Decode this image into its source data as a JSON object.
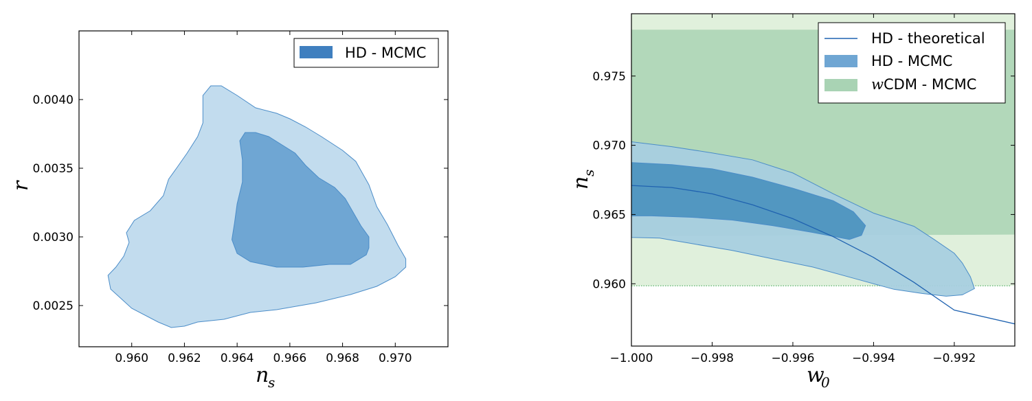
{
  "chart_data": [
    {
      "type": "contour",
      "title": "",
      "xlabel": "n",
      "xlabel_sub": "s",
      "ylabel": "r",
      "xlim": [
        0.958,
        0.972
      ],
      "ylim": [
        0.0022,
        0.0045
      ],
      "x_ticks": [
        {
          "value": 0.96,
          "label": "0.960"
        },
        {
          "value": 0.962,
          "label": "0.962"
        },
        {
          "value": 0.964,
          "label": "0.964"
        },
        {
          "value": 0.966,
          "label": "0.966"
        },
        {
          "value": 0.968,
          "label": "0.968"
        },
        {
          "value": 0.97,
          "label": "0.970"
        }
      ],
      "y_ticks": [
        {
          "value": 0.0025,
          "label": "0.0025"
        },
        {
          "value": 0.003,
          "label": "0.0030"
        },
        {
          "value": 0.0035,
          "label": "0.0035"
        },
        {
          "value": 0.004,
          "label": "0.0040"
        }
      ],
      "legend": {
        "position": "top-right",
        "entries": [
          {
            "label": "HD - MCMC",
            "color": "#3f7fbf"
          }
        ]
      },
      "series": [
        {
          "name": "HD - MCMC 95%",
          "fill": "#c2dcee",
          "stroke": "#4a8cc8",
          "points": [
            [
              0.963,
              0.0041
            ],
            [
              0.9634,
              0.0041
            ],
            [
              0.964,
              0.00403
            ],
            [
              0.9647,
              0.00394
            ],
            [
              0.9655,
              0.0039
            ],
            [
              0.966,
              0.00386
            ],
            [
              0.9666,
              0.0038
            ],
            [
              0.9672,
              0.00373
            ],
            [
              0.968,
              0.00363
            ],
            [
              0.9685,
              0.00355
            ],
            [
              0.969,
              0.00338
            ],
            [
              0.9693,
              0.00322
            ],
            [
              0.9697,
              0.00309
            ],
            [
              0.9701,
              0.00294
            ],
            [
              0.9704,
              0.00284
            ],
            [
              0.9704,
              0.00278
            ],
            [
              0.97,
              0.00271
            ],
            [
              0.9693,
              0.00264
            ],
            [
              0.9683,
              0.00258
            ],
            [
              0.967,
              0.00252
            ],
            [
              0.9655,
              0.00247
            ],
            [
              0.9645,
              0.00245
            ],
            [
              0.9635,
              0.0024
            ],
            [
              0.9625,
              0.00238
            ],
            [
              0.962,
              0.00235
            ],
            [
              0.9615,
              0.00234
            ],
            [
              0.961,
              0.00238
            ],
            [
              0.96,
              0.00248
            ],
            [
              0.9596,
              0.00255
            ],
            [
              0.9592,
              0.00262
            ],
            [
              0.9591,
              0.00272
            ],
            [
              0.9594,
              0.00278
            ],
            [
              0.9597,
              0.00286
            ],
            [
              0.9599,
              0.00296
            ],
            [
              0.9598,
              0.00303
            ],
            [
              0.9601,
              0.00312
            ],
            [
              0.9607,
              0.00319
            ],
            [
              0.9612,
              0.0033
            ],
            [
              0.9614,
              0.00342
            ],
            [
              0.9617,
              0.0035
            ],
            [
              0.9621,
              0.00361
            ],
            [
              0.9625,
              0.00373
            ],
            [
              0.9627,
              0.00383
            ],
            [
              0.9627,
              0.00394
            ],
            [
              0.9627,
              0.00403
            ],
            [
              0.963,
              0.0041
            ]
          ]
        },
        {
          "name": "HD - MCMC 68%",
          "fill": "#6fa6d3",
          "stroke": "#4a8cc8",
          "points": [
            [
              0.9643,
              0.00376
            ],
            [
              0.9647,
              0.00376
            ],
            [
              0.9652,
              0.00373
            ],
            [
              0.9657,
              0.00367
            ],
            [
              0.9662,
              0.00361
            ],
            [
              0.9666,
              0.00352
            ],
            [
              0.9671,
              0.00343
            ],
            [
              0.9677,
              0.00336
            ],
            [
              0.9681,
              0.00328
            ],
            [
              0.9684,
              0.00318
            ],
            [
              0.9687,
              0.00308
            ],
            [
              0.969,
              0.003
            ],
            [
              0.969,
              0.00292
            ],
            [
              0.9689,
              0.00287
            ],
            [
              0.9683,
              0.0028
            ],
            [
              0.9675,
              0.0028
            ],
            [
              0.9665,
              0.00278
            ],
            [
              0.9655,
              0.00278
            ],
            [
              0.9645,
              0.00282
            ],
            [
              0.964,
              0.00288
            ],
            [
              0.9638,
              0.00298
            ],
            [
              0.9639,
              0.0031
            ],
            [
              0.964,
              0.00324
            ],
            [
              0.9642,
              0.0034
            ],
            [
              0.9642,
              0.00356
            ],
            [
              0.9641,
              0.0037
            ],
            [
              0.9643,
              0.00376
            ]
          ]
        }
      ]
    },
    {
      "type": "contour",
      "title": "",
      "xlabel": "w",
      "xlabel_sub": "0",
      "ylabel": "n",
      "ylabel_sub": "s",
      "xlim": [
        -1.0,
        -0.9905
      ],
      "ylim": [
        0.9555,
        0.9795
      ],
      "x_ticks": [
        {
          "value": -1.0,
          "label": "−1.000"
        },
        {
          "value": -0.998,
          "label": "−0.998"
        },
        {
          "value": -0.996,
          "label": "−0.996"
        },
        {
          "value": -0.994,
          "label": "−0.994"
        },
        {
          "value": -0.992,
          "label": "−0.992"
        }
      ],
      "y_ticks": [
        {
          "value": 0.96,
          "label": "0.960"
        },
        {
          "value": 0.965,
          "label": "0.965"
        },
        {
          "value": 0.97,
          "label": "0.970"
        },
        {
          "value": 0.975,
          "label": "0.975"
        }
      ],
      "legend": {
        "position": "top-right",
        "entries": [
          {
            "label": "HD - theoretical",
            "prefix": "",
            "color": "#1f62b0",
            "kind": "line"
          },
          {
            "label": "HD - MCMC",
            "prefix": "",
            "color": "#6fa6d3",
            "kind": "patch"
          },
          {
            "label": "CDM - MCMC",
            "prefix": "w",
            "color": "#a9d3b4",
            "kind": "patch"
          }
        ]
      },
      "bands": [
        {
          "name": "wCDM - MCMC 95%",
          "fill": "#e0f0dc",
          "w_range": [
            -1.0,
            -0.9905
          ],
          "ns_range": [
            0.95985,
            0.97945
          ]
        },
        {
          "name": "wCDM - MCMC 68%",
          "fill": "#b2d8ba",
          "w_range": [
            -1.0,
            -0.9905
          ],
          "ns_top": 0.97835,
          "ns_bottom_left": 0.96345,
          "ns_bottom_right": 0.96355
        }
      ],
      "series": [
        {
          "name": "HD - MCMC 95%",
          "fill": "#a8cfdf",
          "fill_opacity": 0.95,
          "stroke": "#4a8cc8",
          "points": [
            [
              -1.0,
              0.97025
            ],
            [
              -0.999,
              0.9699
            ],
            [
              -0.998,
              0.96945
            ],
            [
              -0.997,
              0.96895
            ],
            [
              -0.996,
              0.968
            ],
            [
              -0.995,
              0.9665
            ],
            [
              -0.9945,
              0.9658
            ],
            [
              -0.994,
              0.9651
            ],
            [
              -0.993,
              0.96415
            ],
            [
              -0.9925,
              0.9632
            ],
            [
              -0.992,
              0.9622
            ],
            [
              -0.9918,
              0.9615
            ],
            [
              -0.9916,
              0.9605
            ],
            [
              -0.9915,
              0.95965
            ],
            [
              -0.9918,
              0.9592
            ],
            [
              -0.9922,
              0.9591
            ],
            [
              -0.9928,
              0.9593
            ],
            [
              -0.9935,
              0.9596
            ],
            [
              -0.9945,
              0.9604
            ],
            [
              -0.9955,
              0.9612
            ],
            [
              -0.9965,
              0.9618
            ],
            [
              -0.9975,
              0.9624
            ],
            [
              -0.9985,
              0.9629
            ],
            [
              -0.9993,
              0.9633
            ],
            [
              -1.0,
              0.96335
            ]
          ]
        },
        {
          "name": "HD - MCMC 68%",
          "fill": "#4d94bf",
          "fill_opacity": 0.95,
          "stroke": "#4a8cc8",
          "points": [
            [
              -1.0,
              0.96875
            ],
            [
              -0.999,
              0.9686
            ],
            [
              -0.998,
              0.9683
            ],
            [
              -0.997,
              0.9677
            ],
            [
              -0.996,
              0.9669
            ],
            [
              -0.995,
              0.966
            ],
            [
              -0.9945,
              0.9652
            ],
            [
              -0.9942,
              0.9642
            ],
            [
              -0.9943,
              0.9635
            ],
            [
              -0.9946,
              0.9632
            ],
            [
              -0.9955,
              0.9637
            ],
            [
              -0.9965,
              0.9642
            ],
            [
              -0.9975,
              0.9646
            ],
            [
              -0.9985,
              0.9648
            ],
            [
              -0.9995,
              0.9649
            ],
            [
              -1.0,
              0.9649
            ]
          ]
        },
        {
          "name": "HD - theoretical",
          "kind": "line",
          "color": "#1f62b0",
          "points": [
            [
              -1.0,
              0.9671
            ],
            [
              -0.999,
              0.96695
            ],
            [
              -0.998,
              0.9665
            ],
            [
              -0.997,
              0.9657
            ],
            [
              -0.996,
              0.9647
            ],
            [
              -0.995,
              0.9634
            ],
            [
              -0.994,
              0.9619
            ],
            [
              -0.993,
              0.9601
            ],
            [
              -0.992,
              0.9581
            ],
            [
              -0.9905,
              0.9571
            ]
          ]
        }
      ],
      "threshold_line": {
        "value": 0.95985,
        "color": "#5ab26a",
        "style": "dotted"
      }
    }
  ]
}
